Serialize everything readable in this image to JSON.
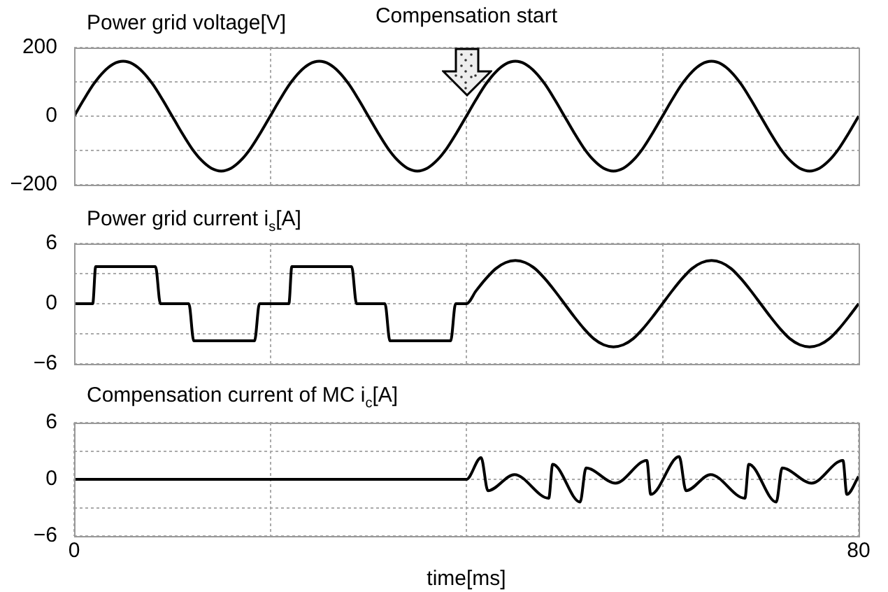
{
  "chart_data": [
    {
      "type": "line",
      "title": "Power grid voltage[V]",
      "annotations": [
        "Compensation start"
      ],
      "xlim": [
        0,
        80
      ],
      "xticks": [
        {
          "value": 20,
          "label": null
        },
        {
          "value": 40,
          "label": null
        },
        {
          "value": 60,
          "label": null
        }
      ],
      "ylim": [
        -200,
        200
      ],
      "yticks": [
        200,
        {
          "value": 100,
          "label": null
        },
        0,
        {
          "value": -100,
          "label": null
        },
        -200
      ],
      "grid": true,
      "tick_labels": "y",
      "series": [
        {
          "color": "#000000",
          "x": [
            0,
            1,
            2,
            3,
            4,
            5,
            6,
            7,
            8,
            9,
            10,
            11,
            12,
            13,
            14,
            15,
            16,
            17,
            18,
            19,
            20,
            21,
            22,
            23,
            24,
            25,
            26,
            27,
            28,
            29,
            30,
            31,
            32,
            33,
            34,
            35,
            36,
            37,
            38,
            39,
            40,
            41,
            42,
            43,
            44,
            45,
            46,
            47,
            48,
            49,
            50,
            51,
            52,
            53,
            54,
            55,
            56,
            57,
            58,
            59,
            60,
            61,
            62,
            63,
            64,
            65,
            66,
            67,
            68,
            69,
            70,
            71,
            72,
            73,
            74,
            75,
            76,
            77,
            78,
            79,
            80
          ],
          "values": [
            0,
            49,
            94,
            129,
            152,
            160,
            152,
            129,
            94,
            49,
            0,
            -49,
            -94,
            -129,
            -152,
            -160,
            -152,
            -129,
            -94,
            -49,
            0,
            49,
            94,
            129,
            152,
            160,
            152,
            129,
            94,
            49,
            0,
            -49,
            -94,
            -129,
            -152,
            -160,
            -152,
            -129,
            -94,
            -49,
            0,
            49,
            94,
            129,
            152,
            160,
            152,
            129,
            94,
            49,
            0,
            -49,
            -94,
            -129,
            -152,
            -160,
            -152,
            -129,
            -94,
            -49,
            0,
            49,
            94,
            129,
            152,
            160,
            152,
            129,
            94,
            49,
            0,
            -49,
            -94,
            -129,
            -152,
            -160,
            -152,
            -129,
            -94,
            -49,
            0
          ]
        }
      ]
    },
    {
      "type": "line",
      "title": "Power grid current i$_{s}$[A]",
      "xlim": [
        0,
        80
      ],
      "xticks": [
        {
          "value": 20,
          "label": null
        },
        {
          "value": 40,
          "label": null
        },
        {
          "value": 60,
          "label": null
        }
      ],
      "ylim": [
        -6,
        6
      ],
      "yticks": [
        6,
        {
          "value": 3,
          "label": null
        },
        0,
        {
          "value": -3,
          "label": null
        },
        -6
      ],
      "grid": true,
      "tick_labels": "y",
      "series": [
        {
          "color": "#000000",
          "x": [
            0,
            1.9,
            2.2,
            8.3,
            8.8,
            11.7,
            12.2,
            18.4,
            18.9,
            21.9,
            22.2,
            28.3,
            28.8,
            31.7,
            32.2,
            38.4,
            38.9,
            40,
            41,
            42,
            43,
            44,
            45,
            46,
            47,
            48,
            49,
            50,
            51,
            52,
            53,
            54,
            55,
            56,
            57,
            58,
            59,
            60,
            61,
            62,
            63,
            64,
            65,
            66,
            67,
            68,
            69,
            70,
            71,
            72,
            73,
            74,
            75,
            76,
            77,
            78,
            79,
            80
          ],
          "values": [
            0,
            0,
            3.7,
            3.7,
            0,
            0,
            -3.7,
            -3.7,
            0,
            0,
            3.7,
            3.7,
            0,
            0,
            -3.7,
            -3.7,
            0,
            0,
            1.3,
            2.5,
            3.5,
            4.1,
            4.3,
            4.1,
            3.5,
            2.5,
            1.3,
            0,
            -1.3,
            -2.5,
            -3.5,
            -4.1,
            -4.3,
            -4.1,
            -3.5,
            -2.5,
            -1.3,
            0,
            1.3,
            2.5,
            3.5,
            4.1,
            4.3,
            4.1,
            3.5,
            2.5,
            1.3,
            0,
            -1.3,
            -2.5,
            -3.5,
            -4.1,
            -4.3,
            -4.1,
            -3.5,
            -2.5,
            -1.3,
            0
          ]
        }
      ]
    },
    {
      "type": "line",
      "title": "Compensation current of MC i$_{c}$[A]",
      "xlabel": "time[ms]",
      "xlim": [
        0,
        80
      ],
      "xticks": [
        0,
        {
          "value": 20,
          "label": null
        },
        {
          "value": 40,
          "label": null
        },
        {
          "value": 60,
          "label": null
        },
        80
      ],
      "ylim": [
        -6,
        6
      ],
      "yticks": [
        6,
        {
          "value": 3,
          "label": null
        },
        0,
        {
          "value": -3,
          "label": null
        },
        -6
      ],
      "grid": true,
      "series": [
        {
          "color": "#000000",
          "x": [
            0,
            40,
            41.5,
            42.2,
            44.9,
            48.4,
            48.8,
            51.6,
            52.2,
            55.2,
            58.4,
            58.8,
            61.7,
            62.4,
            64.9,
            68.4,
            68.8,
            71.6,
            72.2,
            75.2,
            78.4,
            78.8,
            80
          ],
          "values": [
            0,
            0,
            2.3,
            -1.2,
            0.5,
            -2.0,
            1.6,
            -2.4,
            1.2,
            -0.4,
            2.0,
            -1.6,
            2.4,
            -1.2,
            0.5,
            -2.0,
            1.6,
            -2.4,
            1.2,
            -0.4,
            2.0,
            -1.6,
            0.3
          ]
        }
      ]
    }
  ]
}
